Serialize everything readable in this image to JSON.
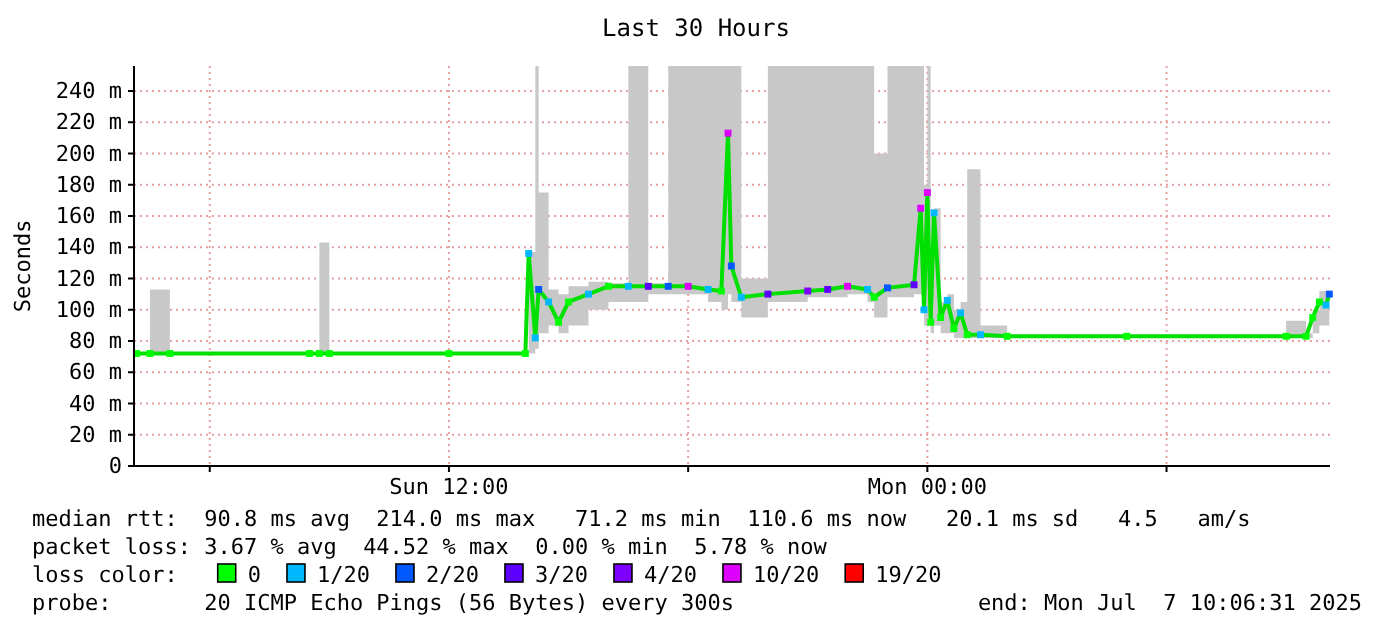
{
  "chart_data": {
    "type": "line",
    "title": "Last 30 Hours",
    "ylabel": "Seconds",
    "xlim": [
      "2025-07-06T04:06",
      "2025-07-07T10:06"
    ],
    "xticks": [
      {
        "value": "2025-07-06T06:00",
        "label": null
      },
      {
        "value": "2025-07-06T12:00",
        "label": "Sun 12:00"
      },
      {
        "value": "2025-07-06T18:00",
        "label": null
      },
      {
        "value": "2025-07-07T00:00",
        "label": "Mon 00:00"
      },
      {
        "value": "2025-07-07T06:00",
        "label": null
      }
    ],
    "ylim": [
      0,
      256
    ],
    "yticks": [
      0,
      {
        "value": 20,
        "label": "20 m"
      },
      {
        "value": 40,
        "label": "40 m"
      },
      {
        "value": 60,
        "label": "60 m"
      },
      {
        "value": 80,
        "label": "80 m"
      },
      {
        "value": 100,
        "label": "100 m"
      },
      {
        "value": 120,
        "label": "120 m"
      },
      {
        "value": 140,
        "label": "140 m"
      },
      {
        "value": 160,
        "label": "160 m"
      },
      {
        "value": 180,
        "label": "180 m"
      },
      {
        "value": 200,
        "label": "200 m"
      },
      {
        "value": 220,
        "label": "220 m"
      },
      {
        "value": 240,
        "label": "240 m"
      }
    ],
    "grid": true,
    "legend": "bottom",
    "legend_title": "loss color:",
    "series": [
      {
        "color": "#00e000",
        "x": [
          "2025-07-06T04:10",
          "2025-07-06T04:30",
          "2025-07-06T05:00",
          "2025-07-06T08:30",
          "2025-07-06T08:45",
          "2025-07-06T09:00",
          "2025-07-06T12:00",
          "2025-07-06T13:55",
          "2025-07-06T14:00",
          "2025-07-06T14:10",
          "2025-07-06T14:15",
          "2025-07-06T14:30",
          "2025-07-06T14:45",
          "2025-07-06T15:00",
          "2025-07-06T15:30",
          "2025-07-06T16:00",
          "2025-07-06T16:30",
          "2025-07-06T17:00",
          "2025-07-06T17:30",
          "2025-07-06T18:00",
          "2025-07-06T18:30",
          "2025-07-06T18:50",
          "2025-07-06T19:00",
          "2025-07-06T19:05",
          "2025-07-06T19:20",
          "2025-07-06T20:00",
          "2025-07-06T21:00",
          "2025-07-06T21:30",
          "2025-07-06T22:00",
          "2025-07-06T22:30",
          "2025-07-06T22:40",
          "2025-07-06T23:00",
          "2025-07-06T23:40",
          "2025-07-06T23:50",
          "2025-07-06T23:55",
          "2025-07-07T00:00",
          "2025-07-07T00:05",
          "2025-07-07T00:10",
          "2025-07-07T00:20",
          "2025-07-07T00:30",
          "2025-07-07T00:40",
          "2025-07-07T00:50",
          "2025-07-07T01:00",
          "2025-07-07T01:20",
          "2025-07-07T02:00",
          "2025-07-07T05:00",
          "2025-07-07T09:00",
          "2025-07-07T09:30",
          "2025-07-07T09:40",
          "2025-07-07T09:50",
          "2025-07-07T10:00",
          "2025-07-07T10:05"
        ],
        "values": [
          72,
          72,
          72,
          72,
          72,
          72,
          72,
          72,
          136,
          82,
          113,
          105,
          92,
          105,
          110,
          115,
          115,
          115,
          115,
          115,
          113,
          112,
          213,
          128,
          108,
          110,
          112,
          113,
          115,
          113,
          108,
          114,
          116,
          165,
          100,
          175,
          92,
          162,
          95,
          106,
          88,
          98,
          84,
          84,
          83,
          83,
          83,
          83,
          95,
          105,
          103,
          110
        ],
        "lower": [
          71,
          71,
          71,
          71,
          71,
          71,
          71,
          71,
          72,
          75,
          85,
          90,
          85,
          90,
          100,
          105,
          105,
          110,
          110,
          110,
          105,
          100,
          110,
          105,
          95,
          105,
          108,
          108,
          110,
          105,
          95,
          108,
          110,
          110,
          90,
          95,
          85,
          90,
          85,
          85,
          82,
          82,
          82,
          82,
          82,
          82,
          82,
          82,
          85,
          90,
          90,
          95
        ],
        "upper": [
          73,
          113,
          73,
          73,
          143,
          73,
          73,
          74,
          137,
          256,
          175,
          113,
          110,
          115,
          118,
          117,
          256,
          117,
          256,
          256,
          256,
          256,
          256,
          256,
          120,
          256,
          256,
          256,
          256,
          256,
          200,
          256,
          256,
          256,
          180,
          256,
          160,
          165,
          105,
          110,
          100,
          105,
          190,
          90,
          84,
          84,
          93,
          85,
          100,
          112,
          110,
          115
        ]
      },
      {
        "type": "scatter",
        "marker": "square",
        "name": "0",
        "color": "#00ff00",
        "x": [
          "2025-07-06T04:10",
          "2025-07-06T04:30",
          "2025-07-06T05:00",
          "2025-07-06T08:30",
          "2025-07-06T08:45",
          "2025-07-06T09:00",
          "2025-07-06T12:00",
          "2025-07-06T13:55",
          "2025-07-06T14:45",
          "2025-07-06T15:00",
          "2025-07-06T16:00",
          "2025-07-06T18:50",
          "2025-07-06T22:40",
          "2025-07-07T00:05",
          "2025-07-07T00:20",
          "2025-07-07T00:40",
          "2025-07-07T01:00",
          "2025-07-07T02:00",
          "2025-07-07T05:00",
          "2025-07-07T09:00",
          "2025-07-07T09:30",
          "2025-07-07T09:40",
          "2025-07-07T09:50"
        ],
        "values": [
          72,
          72,
          72,
          72,
          72,
          72,
          72,
          72,
          92,
          105,
          115,
          112,
          108,
          92,
          95,
          88,
          84,
          83,
          83,
          83,
          83,
          95,
          105
        ]
      },
      {
        "type": "scatter",
        "marker": "square",
        "name": "1/20",
        "color": "#00b8ff",
        "x": [
          "2025-07-06T14:00",
          "2025-07-06T14:10",
          "2025-07-06T14:30",
          "2025-07-06T15:30",
          "2025-07-06T16:30",
          "2025-07-06T18:30",
          "2025-07-06T19:20",
          "2025-07-06T22:30",
          "2025-07-06T23:55",
          "2025-07-07T00:10",
          "2025-07-07T00:30",
          "2025-07-07T00:50",
          "2025-07-07T01:20",
          "2025-07-07T10:00"
        ],
        "values": [
          136,
          82,
          105,
          110,
          115,
          113,
          108,
          113,
          100,
          162,
          106,
          98,
          84,
          103
        ]
      },
      {
        "type": "scatter",
        "marker": "square",
        "name": "2/20",
        "color": "#0059ff",
        "x": [
          "2025-07-06T14:15",
          "2025-07-06T17:30",
          "2025-07-06T19:05",
          "2025-07-06T23:00",
          "2025-07-07T10:05"
        ],
        "values": [
          113,
          115,
          128,
          114,
          110
        ]
      },
      {
        "type": "scatter",
        "marker": "square",
        "name": "3/20",
        "color": "#5e00ff",
        "x": [
          "2025-07-06T17:00",
          "2025-07-06T20:00",
          "2025-07-06T21:30",
          "2025-07-06T23:40"
        ],
        "values": [
          115,
          110,
          113,
          116
        ]
      },
      {
        "type": "scatter",
        "marker": "square",
        "name": "4/20",
        "color": "#7e00ff",
        "x": [
          "2025-07-06T21:00"
        ],
        "values": [
          112
        ]
      },
      {
        "type": "scatter",
        "marker": "square",
        "name": "10/20",
        "color": "#dd00ff",
        "x": [
          "2025-07-06T18:00",
          "2025-07-06T19:00",
          "2025-07-06T22:00",
          "2025-07-06T23:50",
          "2025-07-07T00:00"
        ],
        "values": [
          115,
          213,
          115,
          165,
          175
        ]
      },
      {
        "type": "scatter",
        "name": "19/20",
        "color": "#ff0000"
      }
    ],
    "annotations": [
      "median rtt:  90.8 ms avg  214.0 ms max   71.2 ms min  110.6 ms now   20.1 ms sd   4.5   am/s",
      "packet loss: 3.67 % avg  44.52 % max  0.00 % min  5.78 % now",
      "probe:       20 ICMP Echo Pings (56 Bytes) every 300s",
      "end: Mon Jul  7 10:06:31 2025"
    ]
  }
}
